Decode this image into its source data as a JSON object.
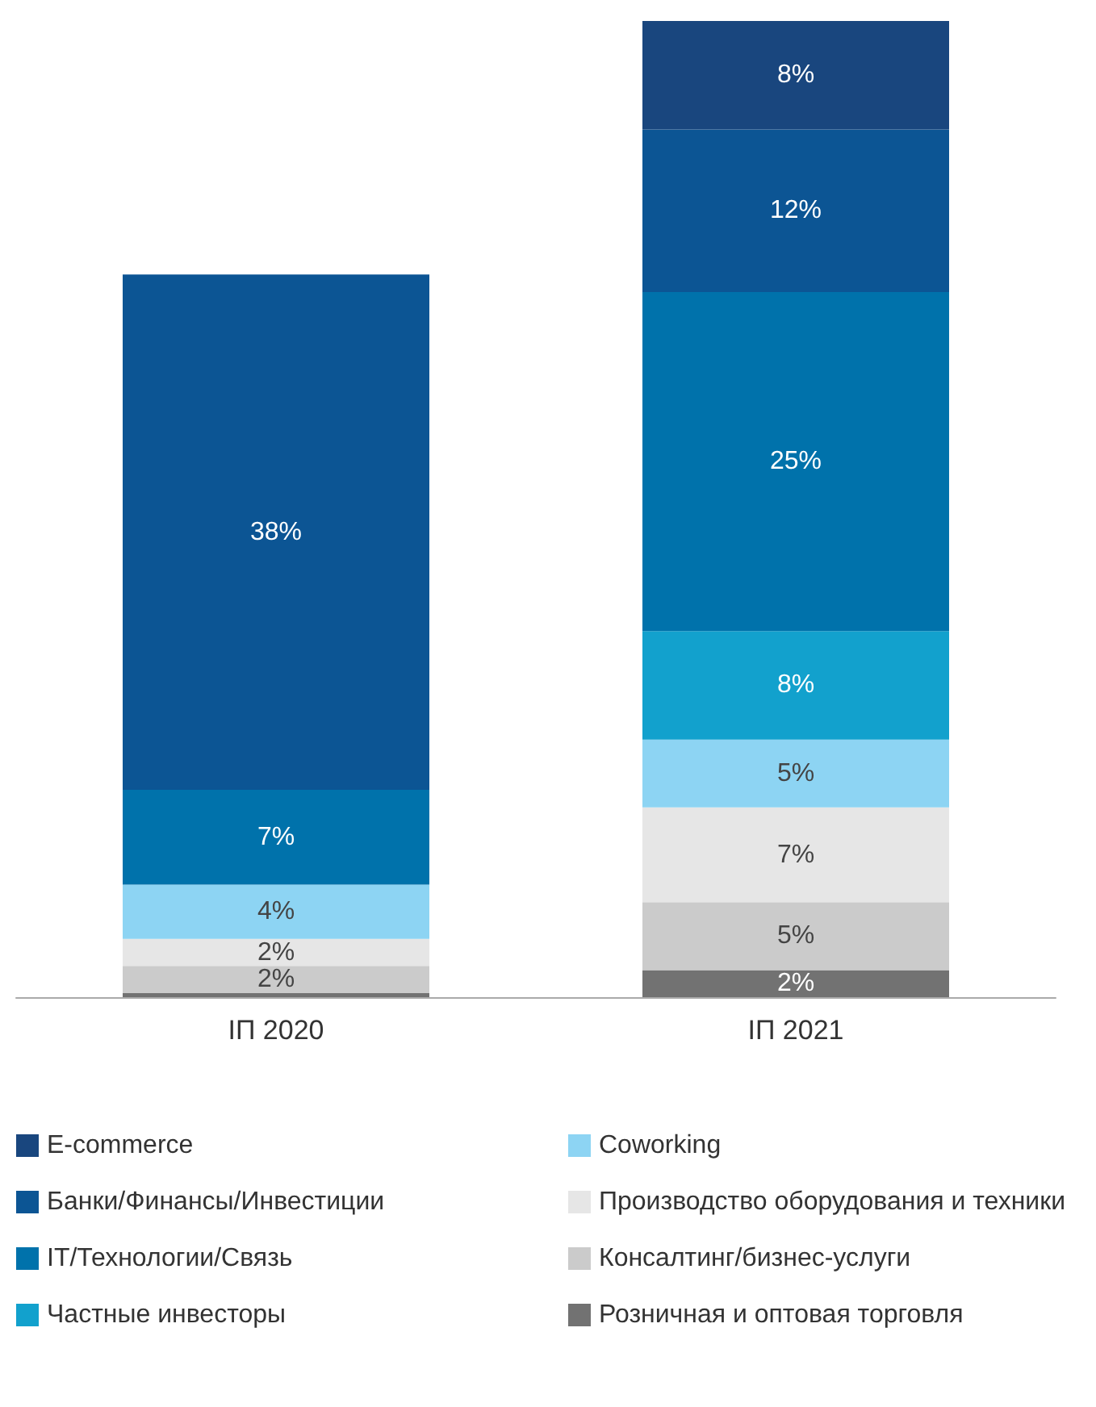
{
  "chart_data": {
    "type": "bar",
    "stacked": true,
    "categories": [
      "IП 2020",
      "IП 2021"
    ],
    "legend": "bottom",
    "series": [
      {
        "name": "Розничная и оптовая торговля",
        "color": "#727272",
        "values": [
          0.3,
          2
        ],
        "value_labels": [
          null,
          "2%"
        ]
      },
      {
        "name": "Консалтинг/бизнес-услуги",
        "color": "#cbcbcb",
        "values": [
          2,
          5
        ],
        "value_labels": [
          "2%",
          "5%"
        ]
      },
      {
        "name": "Производство оборудования и техники",
        "color": "#e6e6e6",
        "values": [
          2,
          7
        ],
        "value_labels": [
          "2%",
          "7%"
        ]
      },
      {
        "name": "Coworking",
        "color": "#8dd4f3",
        "values": [
          4,
          5
        ],
        "value_labels": [
          "4%",
          "5%"
        ]
      },
      {
        "name": "Частные инвесторы",
        "color": "#12a1cd",
        "values": [
          null,
          8
        ],
        "value_labels": [
          null,
          "8%"
        ]
      },
      {
        "name": "IT/Технологии/Связь",
        "color": "#0072ab",
        "values": [
          7,
          25
        ],
        "value_labels": [
          "7%",
          "25%"
        ]
      },
      {
        "name": "Банки/Финансы/Инвестиции",
        "color": "#0c5594",
        "values": [
          38,
          12
        ],
        "value_labels": [
          "38%",
          "12%"
        ]
      },
      {
        "name": "E-commerce",
        "color": "#19467e",
        "values": [
          null,
          8
        ],
        "value_labels": [
          null,
          "8%"
        ]
      }
    ]
  }
}
